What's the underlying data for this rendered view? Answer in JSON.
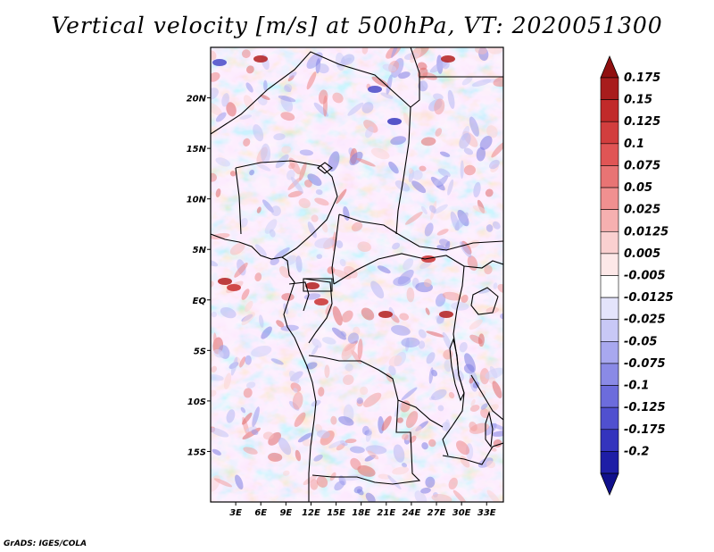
{
  "title": "Vertical velocity [m/s] at 500hPa, VT: 2020051300",
  "footer": "GrADS: IGES/COLA",
  "map": {
    "lon_range": [
      0,
      35
    ],
    "lat_range": [
      -20,
      25
    ],
    "lat_ticks": [
      {
        "lat": 20,
        "label": "20N"
      },
      {
        "lat": 15,
        "label": "15N"
      },
      {
        "lat": 10,
        "label": "10N"
      },
      {
        "lat": 5,
        "label": "5N"
      },
      {
        "lat": 0,
        "label": "EQ"
      },
      {
        "lat": -5,
        "label": "5S"
      },
      {
        "lat": -10,
        "label": "10S"
      },
      {
        "lat": -15,
        "label": "15S"
      }
    ],
    "lon_ticks": [
      {
        "lon": 3,
        "label": "3E"
      },
      {
        "lon": 6,
        "label": "6E"
      },
      {
        "lon": 9,
        "label": "9E"
      },
      {
        "lon": 12,
        "label": "12E"
      },
      {
        "lon": 15,
        "label": "15E"
      },
      {
        "lon": 18,
        "label": "18E"
      },
      {
        "lon": 21,
        "label": "21E"
      },
      {
        "lon": 24,
        "label": "24E"
      },
      {
        "lon": 27,
        "label": "27E"
      },
      {
        "lon": 30,
        "label": "30E"
      },
      {
        "lon": 33,
        "label": "33E"
      }
    ]
  },
  "colorbar": {
    "levels": [
      {
        "label": "0.175",
        "color": "#a81c1c"
      },
      {
        "label": "0.15",
        "color": "#c12a2a"
      },
      {
        "label": "0.125",
        "color": "#d23e3e"
      },
      {
        "label": "0.1",
        "color": "#e05555"
      },
      {
        "label": "0.075",
        "color": "#e87474"
      },
      {
        "label": "0.05",
        "color": "#f09090"
      },
      {
        "label": "0.025",
        "color": "#f6b0b0"
      },
      {
        "label": "0.0125",
        "color": "#fad0d0"
      },
      {
        "label": "0.005",
        "color": "#fde8e8"
      },
      {
        "label": "-0.005",
        "color": "#ffffff"
      },
      {
        "label": "-0.0125",
        "color": "#e4e4fb"
      },
      {
        "label": "-0.025",
        "color": "#c8c8f6"
      },
      {
        "label": "-0.05",
        "color": "#a8a8ef"
      },
      {
        "label": "-0.075",
        "color": "#8a8ae6"
      },
      {
        "label": "-0.1",
        "color": "#6c6cdc"
      },
      {
        "label": "-0.125",
        "color": "#5050cf"
      },
      {
        "label": "-0.175",
        "color": "#3434bd"
      },
      {
        "label": "-0.2",
        "color": "#1e1ea6"
      }
    ],
    "top_arrow_color": "#901010",
    "bottom_arrow_color": "#10108c"
  }
}
